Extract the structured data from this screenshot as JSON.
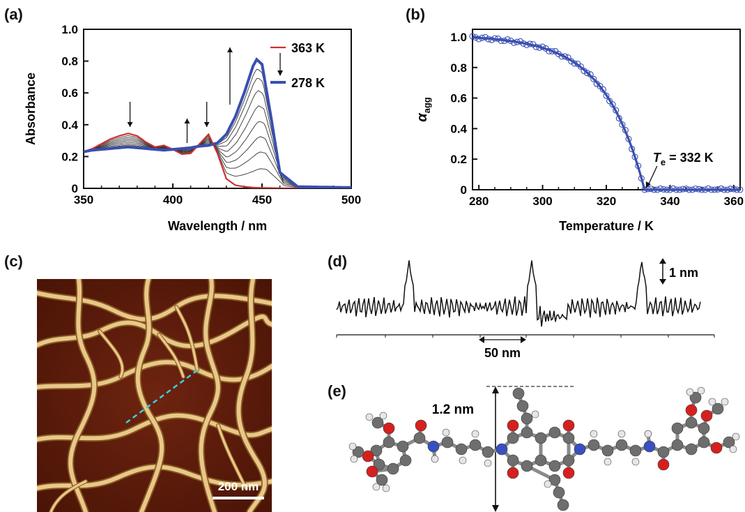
{
  "panels": {
    "a": "(a)",
    "b": "(b)",
    "c": "(c)",
    "d": "(d)",
    "e": "(e)"
  },
  "chart_data": [
    {
      "type": "line",
      "panel": "(a)",
      "xlabel": "Wavelength / nm",
      "ylabel": "Absorbance",
      "xlim": [
        350,
        500
      ],
      "ylim": [
        0,
        1.0
      ],
      "xticks": [
        350,
        400,
        450,
        500
      ],
      "yticks": [
        0,
        0.2,
        0.4,
        0.6,
        0.8,
        1.0
      ],
      "ytick_labels": [
        "0",
        "0.2",
        "0.4",
        "0.6",
        "0.8",
        "1.0"
      ],
      "legend": [
        {
          "name": "363 K",
          "color": "#d03030"
        },
        {
          "name": "278 K",
          "color": "#3a4fb0"
        }
      ],
      "x": [
        350,
        355,
        360,
        365,
        370,
        375,
        380,
        385,
        390,
        395,
        400,
        405,
        410,
        415,
        420,
        425,
        430,
        435,
        440,
        445,
        447,
        450,
        455,
        460,
        470,
        500
      ],
      "series": [
        {
          "name": "363 K",
          "color": "#d03030",
          "values": [
            0.23,
            0.25,
            0.28,
            0.31,
            0.33,
            0.345,
            0.33,
            0.29,
            0.26,
            0.27,
            0.245,
            0.215,
            0.22,
            0.28,
            0.34,
            0.22,
            0.06,
            0.02,
            0.01,
            0.005,
            0.004,
            0.003,
            0.002,
            0.001,
            0.001,
            0.001
          ]
        },
        {
          "name": "278 K",
          "color": "#3a4fb0",
          "values": [
            0.23,
            0.24,
            0.245,
            0.25,
            0.255,
            0.26,
            0.255,
            0.25,
            0.245,
            0.24,
            0.245,
            0.25,
            0.255,
            0.265,
            0.27,
            0.285,
            0.34,
            0.45,
            0.6,
            0.77,
            0.81,
            0.78,
            0.45,
            0.1,
            0.01,
            0.005
          ]
        }
      ],
      "annotations": {
        "down_arrows_nm": [
          376,
          419
        ],
        "up_arrows_nm": [
          408,
          432
        ]
      }
    },
    {
      "type": "scatter",
      "panel": "(b)",
      "xlabel": "Temperature / K",
      "ylabel_main": "α",
      "ylabel_sub": "agg",
      "xlim": [
        278,
        362
      ],
      "ylim": [
        0,
        1.05
      ],
      "xticks": [
        280,
        300,
        320,
        340,
        360
      ],
      "yticks": [
        0,
        0.2,
        0.4,
        0.6,
        0.8,
        1.0
      ],
      "ytick_labels": [
        "0",
        "0.2",
        "0.4",
        "0.6",
        "0.8",
        "1.0"
      ],
      "color": "#3a4fb0",
      "Te_K": 332,
      "annotation_prefix": "T",
      "annotation_sub": "e",
      "annotation_suffix": " = 332 K",
      "x_range": [
        278,
        362
      ],
      "x_step": 1
    }
  ],
  "afm": {
    "scale_label": "200 nm"
  },
  "profile": {
    "height_label": "1 nm",
    "width_label": "50 nm"
  },
  "molecule": {
    "length_label": "1.2 nm"
  }
}
